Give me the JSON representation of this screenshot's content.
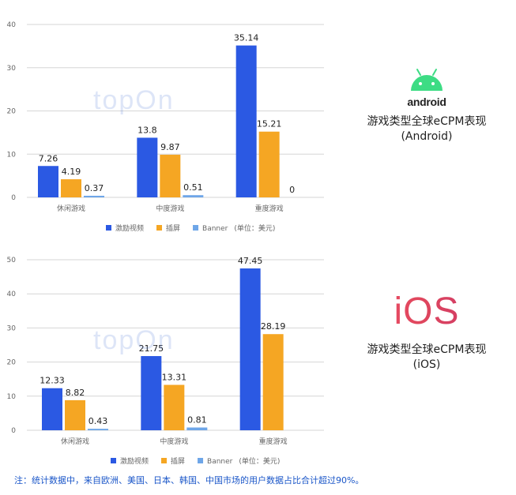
{
  "colors": {
    "incentive_video": "#2b59e3",
    "interstitial": "#f5a623",
    "banner": "#6ea6e8"
  },
  "android_section": {
    "logo_text": "android",
    "caption_line1": "游戏类型全球eCPM表现",
    "caption_line2": "(Android)"
  },
  "ios_section": {
    "logo_text": "iOS",
    "caption_line1": "游戏类型全球eCPM表现",
    "caption_line2": "(iOS)"
  },
  "watermark": "topOn",
  "footnote": "注：统计数据中，来自欧洲、美国、日本、韩国、中国市场的用户数据占比合计超过90%。",
  "chart_data": [
    {
      "type": "bar",
      "categories": [
        "休闲游戏",
        "中度游戏",
        "重度游戏"
      ],
      "series": [
        {
          "name": "激励视频",
          "values": [
            7.26,
            13.8,
            35.14
          ]
        },
        {
          "name": "插屏",
          "values": [
            4.19,
            9.87,
            15.21
          ]
        },
        {
          "name": "Banner",
          "values": [
            0.37,
            0.51,
            0
          ]
        }
      ],
      "value_labels": [
        [
          "7.26",
          "13.8",
          "35.14"
        ],
        [
          "4.19",
          "9.87",
          "15.21"
        ],
        [
          "0.37",
          "0.51",
          "0"
        ]
      ],
      "yticks": [
        "0",
        "10",
        "20",
        "30",
        "40"
      ],
      "ylim": [
        0,
        40
      ],
      "legend_unit": "(单位：美元)",
      "legend_position": "bottom",
      "grid": true
    },
    {
      "type": "bar",
      "categories": [
        "休闲游戏",
        "中度游戏",
        "重度游戏"
      ],
      "series": [
        {
          "name": "激励视频",
          "values": [
            12.33,
            21.75,
            47.45
          ]
        },
        {
          "name": "插屏",
          "values": [
            8.82,
            13.31,
            28.19
          ]
        },
        {
          "name": "Banner",
          "values": [
            0.43,
            0.81,
            null
          ]
        }
      ],
      "value_labels": [
        [
          "12.33",
          "21.75",
          "47.45"
        ],
        [
          "8.82",
          "13.31",
          "28.19"
        ],
        [
          "0.43",
          "0.81",
          null
        ]
      ],
      "yticks": [
        "0",
        "10",
        "20",
        "30",
        "40",
        "50"
      ],
      "ylim": [
        0,
        50
      ],
      "legend_unit": "(单位：美元)",
      "legend_position": "bottom",
      "grid": true
    }
  ]
}
